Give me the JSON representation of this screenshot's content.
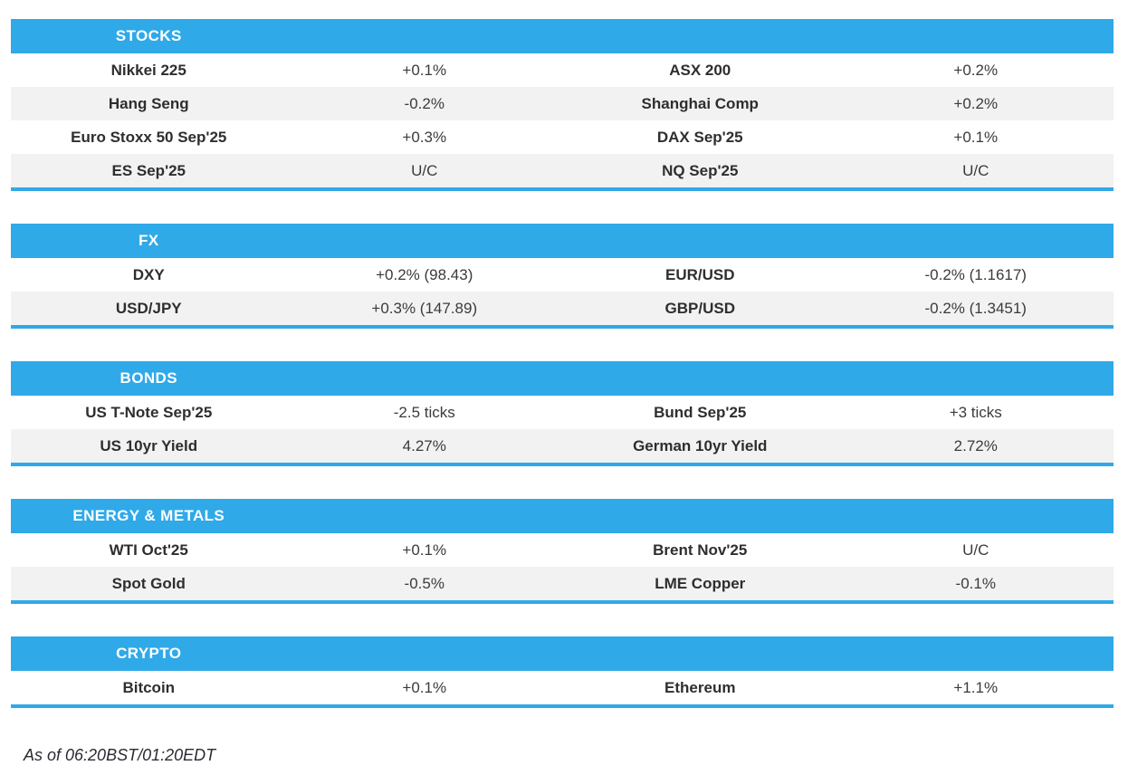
{
  "colors": {
    "accent": "#30A9E8",
    "row_alt": "#F2F2F2",
    "header_text": "#FFFFFF",
    "name_text": "#2E2E2E",
    "value_text": "#3B3B3B"
  },
  "sections": [
    {
      "title": "STOCKS",
      "rows": [
        [
          "Nikkei 225",
          "+0.1%",
          "ASX 200",
          "+0.2%"
        ],
        [
          "Hang Seng",
          "-0.2%",
          "Shanghai Comp",
          "+0.2%"
        ],
        [
          "Euro Stoxx 50 Sep'25",
          "+0.3%",
          "DAX Sep'25",
          "+0.1%"
        ],
        [
          "ES Sep'25",
          "U/C",
          "NQ Sep'25",
          "U/C"
        ]
      ]
    },
    {
      "title": "FX",
      "rows": [
        [
          "DXY",
          "+0.2% (98.43)",
          "EUR/USD",
          "-0.2% (1.1617)"
        ],
        [
          "USD/JPY",
          "+0.3% (147.89)",
          "GBP/USD",
          "-0.2% (1.3451)"
        ]
      ]
    },
    {
      "title": "BONDS",
      "rows": [
        [
          "US T-Note Sep'25",
          "-2.5 ticks",
          "Bund Sep'25",
          "+3 ticks"
        ],
        [
          "US 10yr Yield",
          "4.27%",
          "German 10yr Yield",
          "2.72%"
        ]
      ]
    },
    {
      "title": "ENERGY & METALS",
      "rows": [
        [
          "WTI Oct'25",
          "+0.1%",
          "Brent Nov'25",
          "U/C"
        ],
        [
          "Spot Gold",
          "-0.5%",
          "LME Copper",
          "-0.1%"
        ]
      ]
    },
    {
      "title": "CRYPTO",
      "rows": [
        [
          "Bitcoin",
          "+0.1%",
          "Ethereum",
          "+1.1%"
        ]
      ]
    }
  ],
  "footer": {
    "as_of": "As of 06:20BST/01:20EDT"
  }
}
